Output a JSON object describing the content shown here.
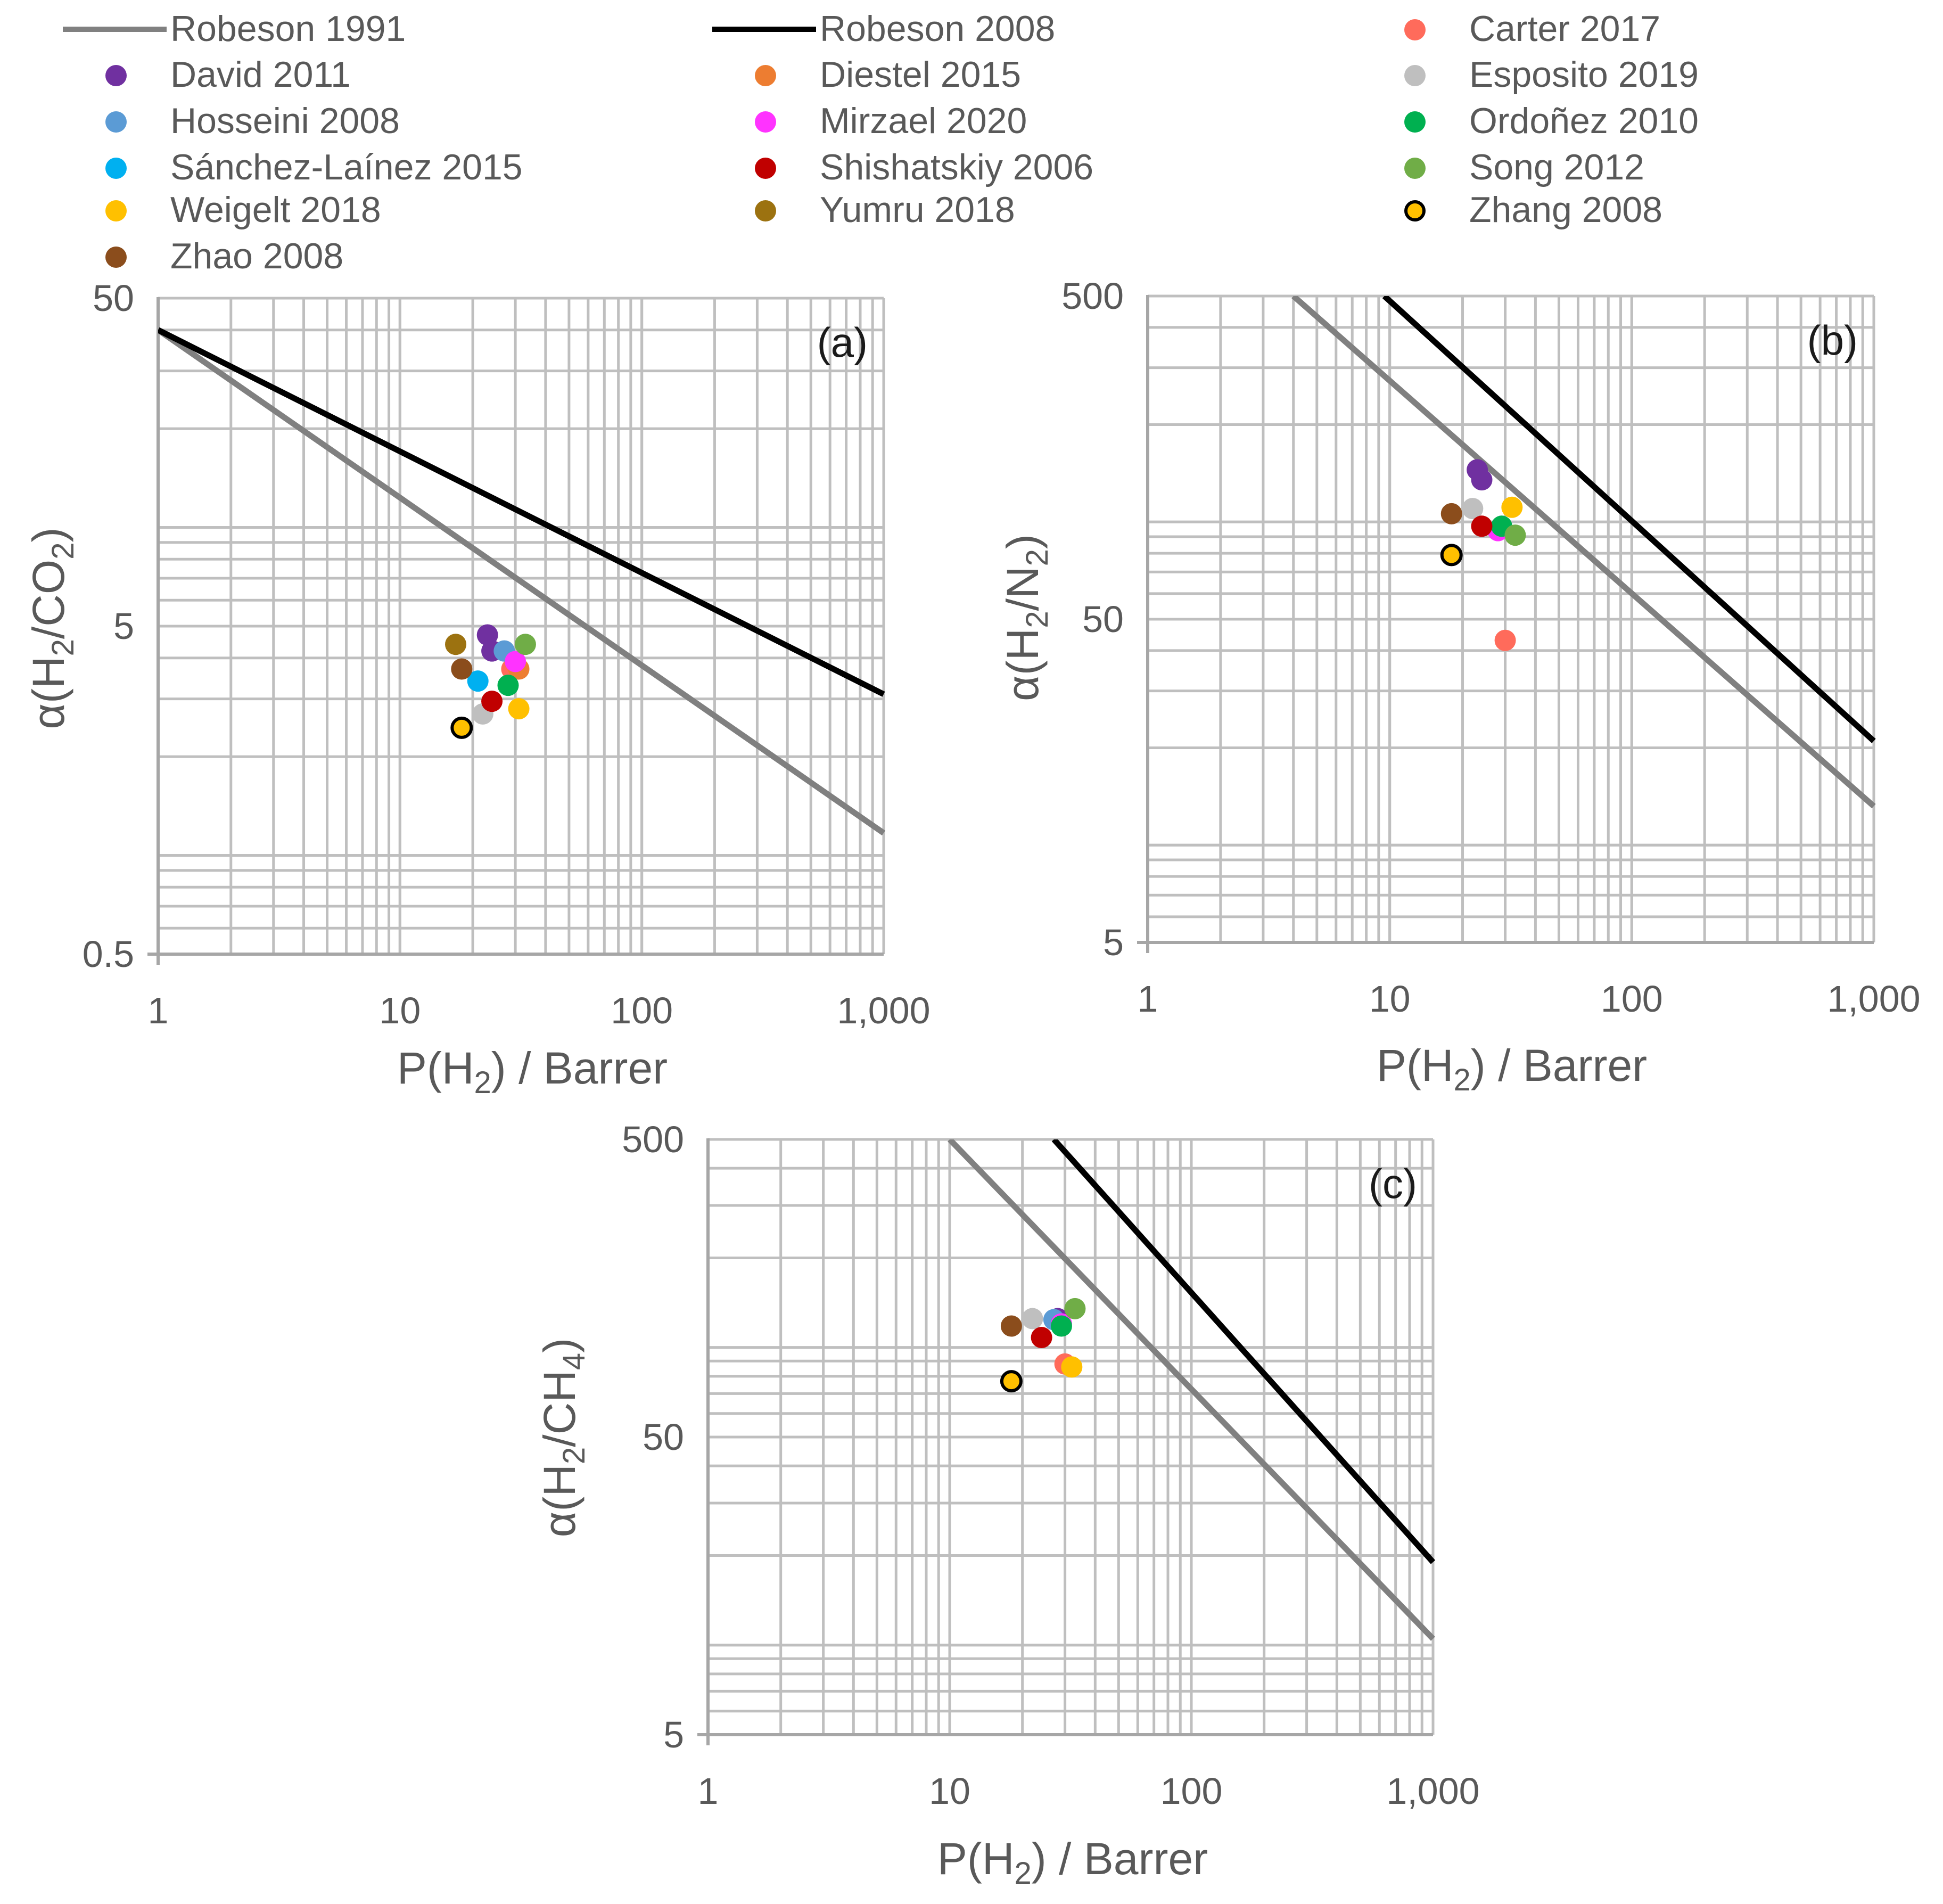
{
  "legend": [
    {
      "label": "Robeson 1991",
      "kind": "line",
      "color": "#808080"
    },
    {
      "label": "Robeson 2008",
      "kind": "line",
      "color": "#000000"
    },
    {
      "label": "Carter 2017",
      "kind": "dot",
      "color": "#ff6b5b"
    },
    {
      "label": "David 2011",
      "kind": "dot",
      "color": "#7030a0"
    },
    {
      "label": "Diestel 2015",
      "kind": "dot",
      "color": "#ed7d31"
    },
    {
      "label": "Esposito 2019",
      "kind": "dot",
      "color": "#bfbfbf"
    },
    {
      "label": "Hosseini 2008",
      "kind": "dot",
      "color": "#5b9bd5"
    },
    {
      "label": "Mirzael 2020",
      "kind": "dot",
      "color": "#ff33ff"
    },
    {
      "label": "Ordoñez 2010",
      "kind": "dot",
      "color": "#00b050"
    },
    {
      "label": "Sánchez-Laínez 2015",
      "kind": "dot",
      "color": "#00b0f0"
    },
    {
      "label": "Shishatskiy 2006",
      "kind": "dot",
      "color": "#c00000"
    },
    {
      "label": "Song 2012",
      "kind": "dot",
      "color": "#70ad47"
    },
    {
      "label": "Weigelt 2018",
      "kind": "dot",
      "color": "#ffc000"
    },
    {
      "label": "Yumru 2018",
      "kind": "dot",
      "color": "#9c7210"
    },
    {
      "label": "Zhang 2008",
      "kind": "dot-outline",
      "color": "#ffc000",
      "edge": "#000000"
    },
    {
      "label": "Zhao 2008",
      "kind": "dot",
      "color": "#8b4d1c"
    }
  ],
  "chart_data": [
    {
      "type": "scatter",
      "panel": "(a)",
      "xscale": "log",
      "yscale": "log",
      "xlim": [
        1,
        1000
      ],
      "ylim": [
        0.5,
        50
      ],
      "grid": true,
      "xlabel": {
        "main": "P(H",
        "sub": "2",
        "tail": ") / Barrer"
      },
      "ylabel": {
        "main": "α(H",
        "sub1": "2",
        "mid": "/CO",
        "sub2": "2",
        "tail": ")"
      },
      "xticks": [
        {
          "v": 1,
          "label": "1"
        },
        {
          "v": 10,
          "label": "10"
        },
        {
          "v": 100,
          "label": "100"
        },
        {
          "v": 1000,
          "label": "1,000"
        }
      ],
      "yticks": [
        {
          "v": 0.5,
          "label": "0.5"
        },
        {
          "v": 5,
          "label": "5"
        },
        {
          "v": 50,
          "label": "50"
        }
      ],
      "lines": [
        {
          "name": "Robeson 1991",
          "color": "#808080",
          "points": [
            [
              1,
              40
            ],
            [
              1000,
              1.17
            ]
          ]
        },
        {
          "name": "Robeson 2008",
          "color": "#000000",
          "points": [
            [
              1,
              40
            ],
            [
              1000,
              3.1
            ]
          ]
        }
      ],
      "points": [
        {
          "name": "Carter 2017",
          "x": 29,
          "y": 3.7
        },
        {
          "name": "David 2011",
          "x": 23,
          "y": 4.7
        },
        {
          "name": "David 2011",
          "x": 24,
          "y": 4.2
        },
        {
          "name": "Diestel 2015",
          "x": 31,
          "y": 3.7
        },
        {
          "name": "Esposito 2019",
          "x": 22,
          "y": 2.7
        },
        {
          "name": "Hosseini 2008",
          "x": 27,
          "y": 4.2
        },
        {
          "name": "Mirzael 2020",
          "x": 30,
          "y": 3.9
        },
        {
          "name": "Ordoñez 2010",
          "x": 28,
          "y": 3.3
        },
        {
          "name": "Sánchez-Laínez 2015",
          "x": 21,
          "y": 3.4
        },
        {
          "name": "Shishatskiy 2006",
          "x": 24,
          "y": 2.95
        },
        {
          "name": "Song 2012",
          "x": 33,
          "y": 4.4
        },
        {
          "name": "Weigelt 2018",
          "x": 31,
          "y": 2.8
        },
        {
          "name": "Yumru 2018",
          "x": 17,
          "y": 4.4
        },
        {
          "name": "Zhang 2008",
          "x": 18,
          "y": 2.45
        },
        {
          "name": "Zhao 2008",
          "x": 18,
          "y": 3.7
        }
      ]
    },
    {
      "type": "scatter",
      "panel": "(b)",
      "xscale": "log",
      "yscale": "log",
      "xlim": [
        1,
        1000
      ],
      "ylim": [
        5,
        500
      ],
      "grid": true,
      "xlabel": {
        "main": "P(H",
        "sub": "2",
        "tail": ") / Barrer"
      },
      "ylabel": {
        "main": "α(H",
        "sub1": "2",
        "mid": "/N",
        "sub2": "2",
        "tail": ")"
      },
      "xticks": [
        {
          "v": 1,
          "label": "1"
        },
        {
          "v": 10,
          "label": "10"
        },
        {
          "v": 100,
          "label": "100"
        },
        {
          "v": 1000,
          "label": "1,000"
        }
      ],
      "yticks": [
        {
          "v": 5,
          "label": "5"
        },
        {
          "v": 50,
          "label": "50"
        },
        {
          "v": 500,
          "label": "500"
        }
      ],
      "lines": [
        {
          "name": "Robeson 1991",
          "color": "#808080",
          "points": [
            [
              4,
              500
            ],
            [
              1000,
              13.2
            ]
          ]
        },
        {
          "name": "Robeson 2008",
          "color": "#000000",
          "points": [
            [
              9.5,
              500
            ],
            [
              1000,
              21
            ]
          ]
        }
      ],
      "points": [
        {
          "name": "Carter 2017",
          "x": 30,
          "y": 43
        },
        {
          "name": "David 2011",
          "x": 23,
          "y": 145
        },
        {
          "name": "David 2011",
          "x": 24,
          "y": 135
        },
        {
          "name": "Esposito 2019",
          "x": 22,
          "y": 110
        },
        {
          "name": "Mirzael 2020",
          "x": 28,
          "y": 94
        },
        {
          "name": "Ordoñez 2010",
          "x": 29,
          "y": 97
        },
        {
          "name": "Shishatskiy 2006",
          "x": 24,
          "y": 97
        },
        {
          "name": "Song 2012",
          "x": 33,
          "y": 91
        },
        {
          "name": "Weigelt 2018",
          "x": 32,
          "y": 111
        },
        {
          "name": "Zhang 2008",
          "x": 18,
          "y": 79
        },
        {
          "name": "Zhao 2008",
          "x": 18,
          "y": 106
        }
      ]
    },
    {
      "type": "scatter",
      "panel": "(c)",
      "xscale": "log",
      "yscale": "log",
      "xlim": [
        1,
        1000
      ],
      "ylim": [
        5,
        500
      ],
      "grid": true,
      "xlabel": {
        "main": "P(H",
        "sub": "2",
        "tail": ") / Barrer"
      },
      "ylabel": {
        "main": "α(H",
        "sub1": "2",
        "mid": "/CH",
        "sub2": "4",
        "tail": ")"
      },
      "xticks": [
        {
          "v": 1,
          "label": "1"
        },
        {
          "v": 10,
          "label": "10"
        },
        {
          "v": 100,
          "label": "100"
        },
        {
          "v": 1000,
          "label": "1,000"
        }
      ],
      "yticks": [
        {
          "v": 5,
          "label": "5"
        },
        {
          "v": 50,
          "label": "50"
        },
        {
          "v": 500,
          "label": "500"
        }
      ],
      "lines": [
        {
          "name": "Robeson 1991",
          "color": "#808080",
          "points": [
            [
              10,
              500
            ],
            [
              1000,
              10.5
            ]
          ]
        },
        {
          "name": "Robeson 2008",
          "color": "#000000",
          "points": [
            [
              27,
              500
            ],
            [
              1000,
              19
            ]
          ]
        }
      ],
      "points": [
        {
          "name": "Carter 2017",
          "x": 30,
          "y": 88
        },
        {
          "name": "David 2011",
          "x": 28,
          "y": 125
        },
        {
          "name": "Esposito 2019",
          "x": 22,
          "y": 125
        },
        {
          "name": "Hosseini 2008",
          "x": 27,
          "y": 124
        },
        {
          "name": "Mirzael 2020",
          "x": 29,
          "y": 120
        },
        {
          "name": "Ordoñez 2010",
          "x": 29,
          "y": 118
        },
        {
          "name": "Shishatskiy 2006",
          "x": 24,
          "y": 108
        },
        {
          "name": "Song 2012",
          "x": 33,
          "y": 135
        },
        {
          "name": "Weigelt 2018",
          "x": 32,
          "y": 86
        },
        {
          "name": "Zhang 2008",
          "x": 18,
          "y": 77
        },
        {
          "name": "Zhao 2008",
          "x": 18,
          "y": 118
        }
      ]
    }
  ]
}
